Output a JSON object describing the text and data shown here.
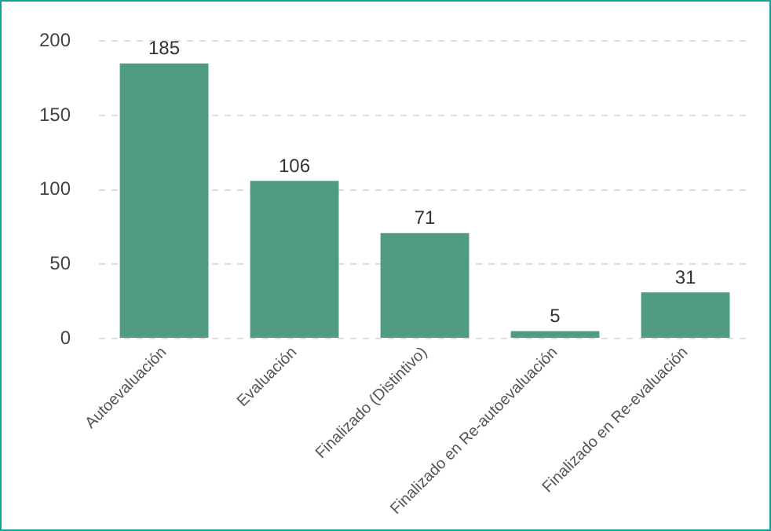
{
  "chart_data": {
    "type": "bar",
    "categories": [
      "Autoevaluación",
      "Evaluación",
      "Finalizado (Distintivo)",
      "Finalizado en Re-autoevaluación",
      "Finalizado en Re-evaluación"
    ],
    "values": [
      185,
      106,
      71,
      5,
      31
    ],
    "color": "#4f9c80",
    "ylim": [
      0,
      200
    ],
    "yticks": [
      0,
      50,
      100,
      150,
      200
    ],
    "grid": "y",
    "data_labels": true
  }
}
